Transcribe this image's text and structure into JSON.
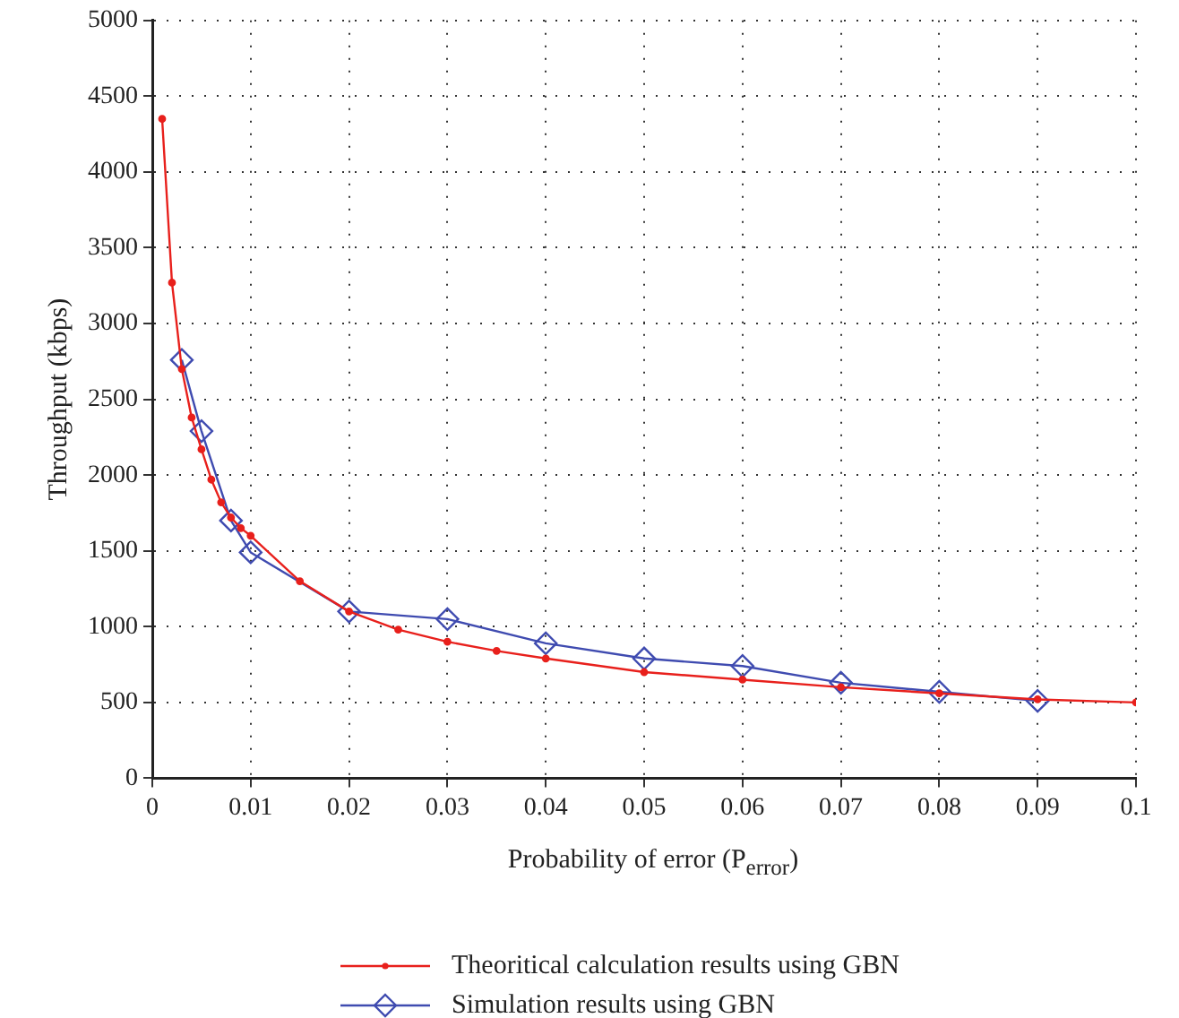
{
  "chart_data": {
    "type": "line",
    "xlabel": "Probability of error (P$_{error}$)",
    "ylabel": "Throughput (kbps)",
    "xlim": [
      0,
      0.1
    ],
    "xticks": [
      0,
      0.01,
      0.02,
      0.03,
      0.04,
      0.05,
      0.06,
      0.07,
      0.08,
      0.09,
      0.1
    ],
    "ylim": [
      0,
      5000
    ],
    "yticks": [
      0,
      500,
      1000,
      1500,
      2000,
      2500,
      3000,
      3500,
      4000,
      4500,
      5000
    ],
    "grid": true,
    "legend": "bottom",
    "line_style": "solid",
    "series": [
      {
        "name": "Theoritical calculation results using GBN",
        "color": "#e8201c",
        "marker": "circle",
        "x": [
          0.001,
          0.002,
          0.003,
          0.004,
          0.005,
          0.006,
          0.007,
          0.008,
          0.009,
          0.01,
          0.015,
          0.02,
          0.025,
          0.03,
          0.035,
          0.04,
          0.05,
          0.06,
          0.07,
          0.08,
          0.09,
          0.1
        ],
        "values": [
          4350,
          3270,
          2700,
          2380,
          2170,
          1970,
          1820,
          1720,
          1650,
          1600,
          1300,
          1100,
          980,
          900,
          840,
          790,
          700,
          650,
          600,
          560,
          520,
          500
        ]
      },
      {
        "name": "Simulation results using GBN",
        "color": "#3f4bb0",
        "marker": "diamond",
        "x": [
          0.003,
          0.005,
          0.008,
          0.01,
          0.02,
          0.03,
          0.04,
          0.05,
          0.06,
          0.07,
          0.08,
          0.09
        ],
        "values": [
          2760,
          2290,
          1700,
          1490,
          1100,
          1050,
          890,
          790,
          740,
          630,
          570,
          510
        ]
      }
    ]
  }
}
